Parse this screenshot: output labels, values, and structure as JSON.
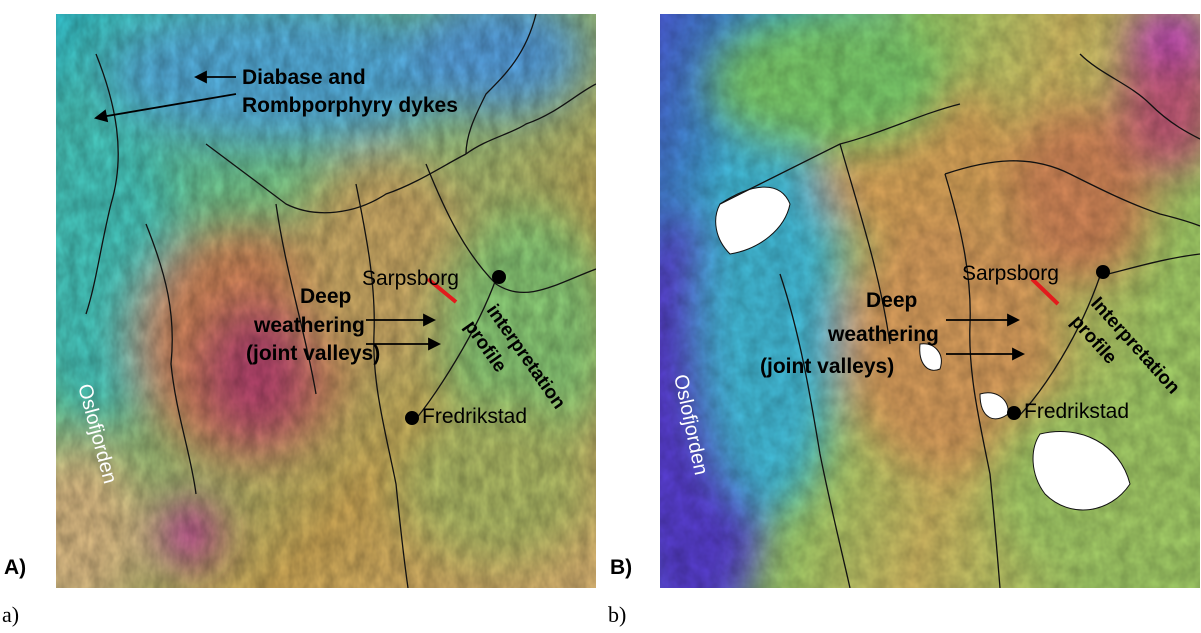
{
  "figure": {
    "captions": [
      "a)",
      "b)"
    ],
    "panels": [
      {
        "id": "A",
        "panel_label": "A)",
        "labels": {
          "dykes_line1": "Diabase and",
          "dykes_line2": "Rombporphyry dykes",
          "deep_line1": "Deep",
          "deep_line2": "weathering",
          "deep_line3": "(joint valleys)",
          "sarpsborg": "Sarpsborg",
          "fredrikstad": "Fredrikstad",
          "interpretation": "interpretation",
          "profile": "profile",
          "oslofjorden": "Oslofjorden"
        }
      },
      {
        "id": "B",
        "panel_label": "B)",
        "labels": {
          "deep_line1": "Deep",
          "deep_line2": "weathering",
          "deep_line3": "(joint valleys)",
          "sarpsborg": "Sarpsborg",
          "fredrikstad": "Fredrikstad",
          "interpretation": "Interpretation",
          "profile": "profile",
          "oslofjorden": "Oslofjorden"
        }
      }
    ]
  },
  "colors": {
    "profile_line": "#e31a1c",
    "coastline": "#111111",
    "fjord_label": "#ffffff"
  }
}
